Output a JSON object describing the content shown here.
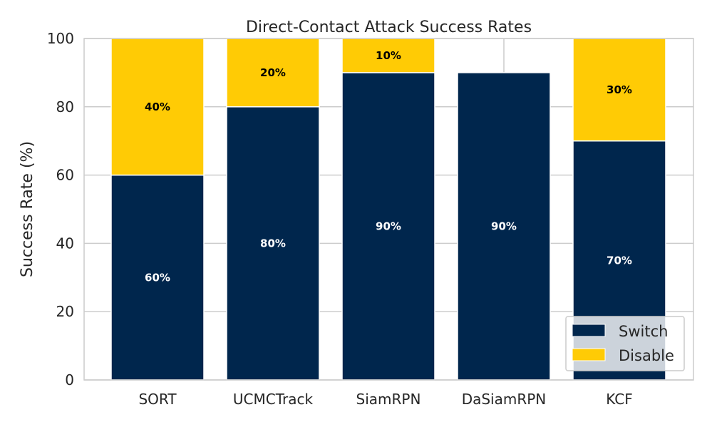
{
  "chart_data": {
    "type": "bar",
    "stacked": true,
    "title": "Direct-Contact Attack Success Rates",
    "xlabel": "",
    "ylabel": "Success Rate (%)",
    "categories": [
      "SORT",
      "UCMCTrack",
      "SiamRPN",
      "DaSiamRPN",
      "KCF"
    ],
    "ylim": [
      0,
      100
    ],
    "yticks": [
      0,
      20,
      40,
      60,
      80,
      100
    ],
    "grid": true,
    "legend_position": "bottom-right",
    "series": [
      {
        "name": "Switch",
        "color": "#00264d",
        "label_color": "#ffffff",
        "values": [
          60,
          80,
          90,
          90,
          70
        ],
        "labels": [
          "60%",
          "80%",
          "90%",
          "90%",
          "70%"
        ]
      },
      {
        "name": "Disable",
        "color": "#ffcb05",
        "label_color": "#000000",
        "values": [
          40,
          20,
          10,
          0,
          30
        ],
        "labels": [
          "40%",
          "20%",
          "10%",
          "",
          "30%"
        ]
      }
    ]
  }
}
